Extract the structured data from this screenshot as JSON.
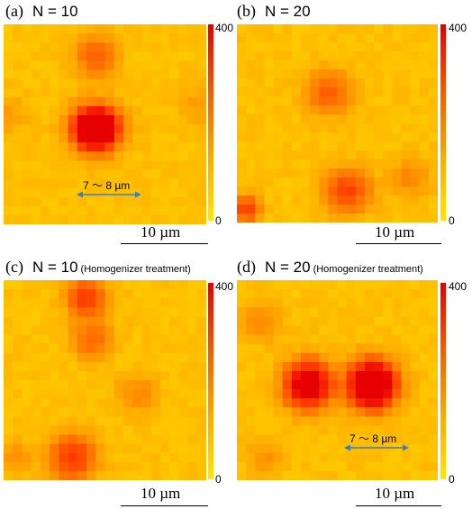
{
  "panels": [
    {
      "letter": "(a)",
      "n_label": "N = 10",
      "note": "",
      "colorbar_max": "400",
      "colorbar_min": "0",
      "scale_label": "10 µm",
      "dimension_label": "7 〜 8 µm"
    },
    {
      "letter": "(b)",
      "n_label": "N = 20",
      "note": "",
      "colorbar_max": "400",
      "colorbar_min": "0",
      "scale_label": "10 µm",
      "dimension_label": ""
    },
    {
      "letter": "(c)",
      "n_label": "N = 10",
      "note": "(Homogenizer treatment)",
      "colorbar_max": "400",
      "colorbar_min": "0",
      "scale_label": "10 µm",
      "dimension_label": ""
    },
    {
      "letter": "(d)",
      "n_label": "N = 20",
      "note": "(Homogenizer treatment)",
      "colorbar_max": "400",
      "colorbar_min": "0",
      "scale_label": "10 µm",
      "dimension_label": "7 〜 8 µm"
    }
  ],
  "colors": {
    "low": "#ffe600",
    "mid": "#f39200",
    "high": "#e60000",
    "arrow": "#3b7fc4"
  }
}
